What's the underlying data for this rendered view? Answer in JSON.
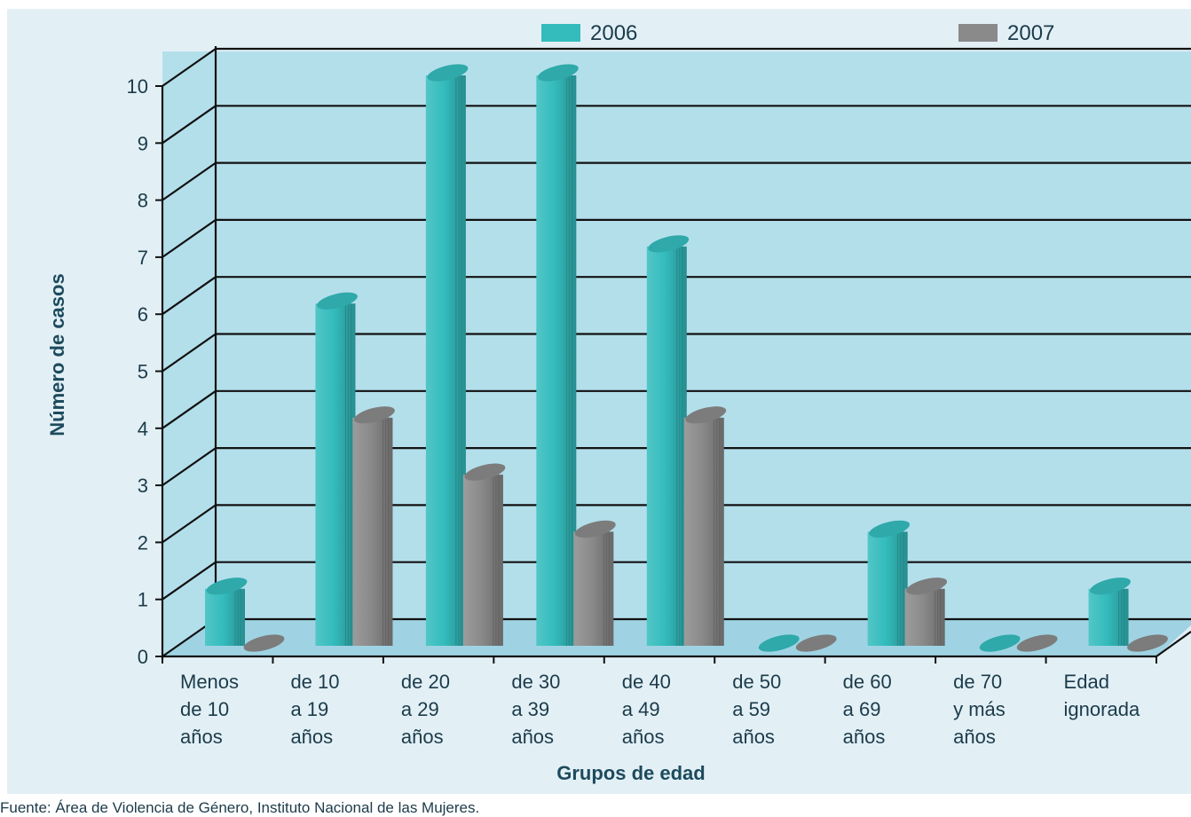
{
  "chart_data": {
    "type": "bar",
    "ylabel": "Número de casos",
    "xlabel": "Grupos de edad",
    "ylim": [
      0,
      10
    ],
    "yticks": [
      "0",
      "1",
      "2",
      "3",
      "4",
      "5",
      "6",
      "7",
      "8",
      "9",
      "10"
    ],
    "grid": true,
    "legend_position": "top",
    "categories": [
      [
        "Menos",
        "de 10",
        "años"
      ],
      [
        "de 10",
        "a 19",
        "años"
      ],
      [
        "de 20",
        "a 29",
        "años"
      ],
      [
        "de 30",
        "a 39",
        "años"
      ],
      [
        "de 40",
        "a 49",
        "años"
      ],
      [
        "de 50",
        "a 59",
        "años"
      ],
      [
        "de 60",
        "a 69",
        "años"
      ],
      [
        "de 70",
        "y más",
        "años"
      ],
      [
        "Edad",
        "ignorada"
      ]
    ],
    "series": [
      {
        "name": "2006",
        "color": "#34bcbd",
        "values": [
          1,
          6,
          10,
          10,
          7,
          0,
          2,
          0,
          1
        ]
      },
      {
        "name": "2007",
        "color": "#8a8a8a",
        "values": [
          0,
          4,
          3,
          2,
          4,
          0,
          1,
          0,
          0
        ]
      }
    ]
  },
  "footer": {
    "source": "Fuente: Área de Violencia de Género, Instituto Nacional de las Mujeres."
  }
}
